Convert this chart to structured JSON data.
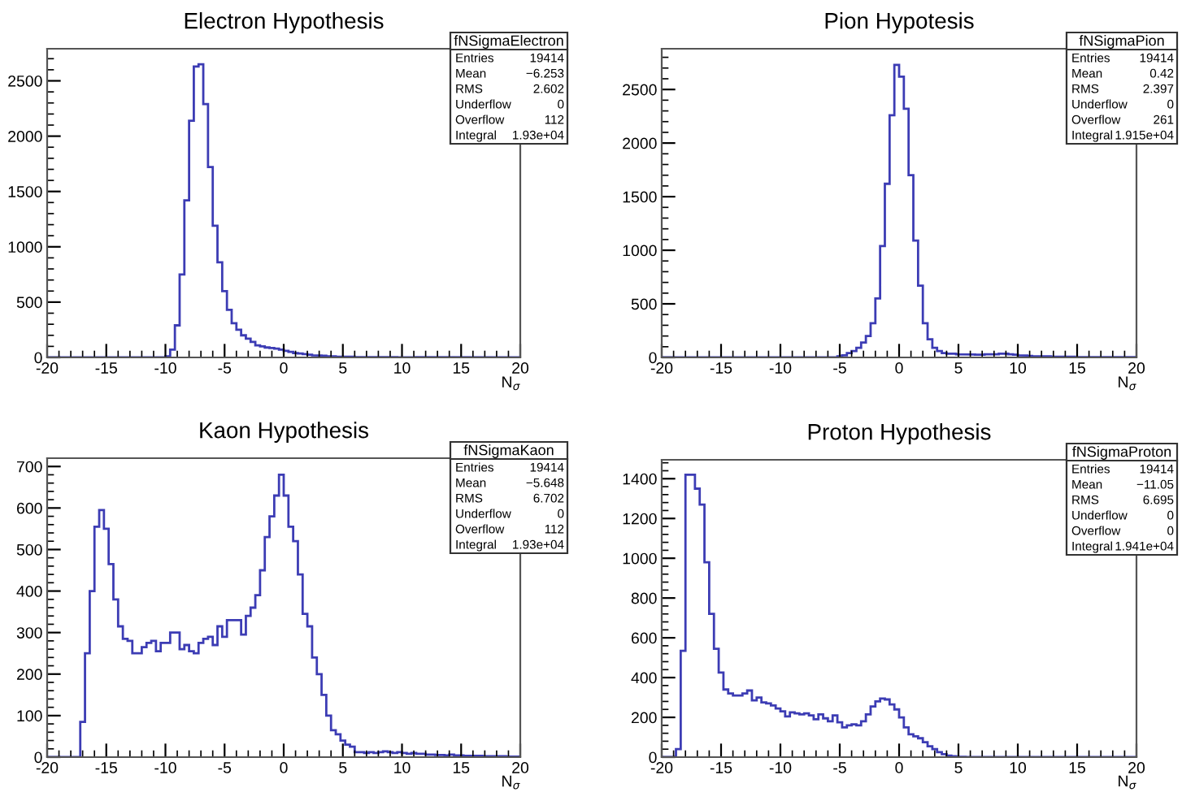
{
  "chart_data": [
    {
      "type": "histogram",
      "title": "Electron Hypothesis",
      "xlabel": "N$_{σ}$",
      "color": "#3c3cb4",
      "xlim": [
        -20,
        20
      ],
      "xticks": [
        -20,
        -15,
        -10,
        -5,
        0,
        5,
        10,
        15,
        20
      ],
      "ylim": [
        0,
        2790
      ],
      "yticks": [
        0,
        500,
        1000,
        1500,
        2000,
        2500
      ],
      "bins": [
        -20,
        -19.6,
        -19.2,
        -18.8,
        -18.4,
        -18,
        -17.6,
        -17.2,
        -16.8,
        -16.4,
        -16,
        -15.6,
        -15.2,
        -14.8,
        -14.4,
        -14,
        -13.6,
        -13.2,
        -12.8,
        -12.4,
        -12,
        -11.6,
        -11.2,
        -10.8,
        -10.4,
        -10,
        -9.6,
        -9.2,
        -8.8,
        -8.4,
        -8,
        -7.6,
        -7.2,
        -6.8,
        -6.4,
        -6,
        -5.6,
        -5.2,
        -4.8,
        -4.4,
        -4,
        -3.6,
        -3.2,
        -2.8,
        -2.4,
        -2,
        -1.6,
        -1.2,
        -0.8,
        -0.4,
        0,
        0.4,
        0.8,
        1.2,
        1.6,
        2,
        2.4,
        2.8,
        3.2,
        3.6,
        4,
        4.4,
        4.8,
        5.2,
        5.6,
        6,
        6.4,
        6.8,
        7.2,
        7.6,
        8,
        8.4,
        8.8,
        9.2,
        9.6,
        10,
        10.4,
        10.8,
        11.2,
        11.6,
        12,
        12.4,
        12.8,
        13.2,
        13.6,
        14,
        14.4,
        14.8,
        15.2,
        15.6,
        16,
        16.4,
        16.8,
        17.2,
        17.6,
        18,
        18.4,
        18.8,
        19.2,
        19.6,
        20
      ],
      "values": [
        0,
        0,
        0,
        0,
        0,
        0,
        0,
        0,
        0,
        0,
        0,
        0,
        0,
        0,
        0,
        0,
        0,
        0,
        0,
        0,
        0,
        0,
        0,
        0,
        0,
        10,
        70,
        290,
        750,
        1420,
        2140,
        2630,
        2650,
        2290,
        1720,
        1190,
        860,
        600,
        430,
        310,
        250,
        200,
        170,
        140,
        110,
        100,
        90,
        85,
        80,
        70,
        60,
        50,
        40,
        35,
        30,
        25,
        20,
        18,
        15,
        12,
        10,
        8,
        8,
        6,
        6,
        5,
        5,
        4,
        4,
        4,
        3,
        3,
        3,
        3,
        2,
        2,
        2,
        2,
        2,
        1,
        0,
        0,
        0,
        0,
        0,
        0,
        0,
        0,
        0,
        0,
        0,
        0,
        0,
        0,
        0,
        0,
        0,
        0,
        0,
        0
      ],
      "annotations": [
        "fNSigmaElectron",
        "Entries 19414",
        "Mean −6.253",
        "RMS 2.602",
        "Underflow 0",
        "Overflow 112",
        "Integral 1.93e+04"
      ]
    },
    {
      "type": "histogram",
      "title": "Pion Hypotesis",
      "xlabel": "N$_{σ}$",
      "color": "#3c3cb4",
      "xlim": [
        -20,
        20
      ],
      "xticks": [
        -20,
        -15,
        -10,
        -5,
        0,
        5,
        10,
        15,
        20
      ],
      "ylim": [
        0,
        2880
      ],
      "yticks": [
        0,
        500,
        1000,
        1500,
        2000,
        2500
      ],
      "bins": [
        -20,
        -19.6,
        -19.2,
        -18.8,
        -18.4,
        -18,
        -17.6,
        -17.2,
        -16.8,
        -16.4,
        -16,
        -15.6,
        -15.2,
        -14.8,
        -14.4,
        -14,
        -13.6,
        -13.2,
        -12.8,
        -12.4,
        -12,
        -11.6,
        -11.2,
        -10.8,
        -10.4,
        -10,
        -9.6,
        -9.2,
        -8.8,
        -8.4,
        -8,
        -7.6,
        -7.2,
        -6.8,
        -6.4,
        -6,
        -5.6,
        -5.2,
        -4.8,
        -4.4,
        -4,
        -3.6,
        -3.2,
        -2.8,
        -2.4,
        -2,
        -1.6,
        -1.2,
        -0.8,
        -0.4,
        0,
        0.4,
        0.8,
        1.2,
        1.6,
        2,
        2.4,
        2.8,
        3.2,
        3.6,
        4,
        4.4,
        4.8,
        5.2,
        5.6,
        6,
        6.4,
        6.8,
        7.2,
        7.6,
        8,
        8.4,
        8.8,
        9.2,
        9.6,
        10,
        10.4,
        10.8,
        11.2,
        11.6,
        12,
        12.4,
        12.8,
        13.2,
        13.6,
        14,
        14.4,
        14.8,
        15.2,
        15.6,
        16,
        16.4,
        16.8,
        17.2,
        17.6,
        18,
        18.4,
        18.8,
        19.2,
        19.6,
        20
      ],
      "values": [
        0,
        0,
        0,
        0,
        0,
        0,
        0,
        0,
        0,
        0,
        0,
        0,
        0,
        0,
        0,
        0,
        0,
        0,
        0,
        0,
        0,
        0,
        0,
        0,
        0,
        0,
        0,
        0,
        0,
        0,
        0,
        0,
        0,
        0,
        0,
        0,
        0,
        10,
        20,
        40,
        60,
        90,
        140,
        200,
        320,
        550,
        1040,
        1620,
        2260,
        2730,
        2620,
        2320,
        1700,
        1090,
        670,
        320,
        170,
        90,
        60,
        40,
        35,
        35,
        30,
        30,
        28,
        28,
        26,
        25,
        30,
        28,
        30,
        35,
        35,
        30,
        25,
        20,
        18,
        15,
        12,
        12,
        10,
        10,
        8,
        8,
        7,
        6,
        6,
        5,
        5,
        5,
        4,
        4,
        4,
        3,
        3,
        3,
        2,
        2,
        2,
        2
      ],
      "annotations": [
        "fNSigmaPion",
        "Entries 19414",
        "Mean 0.42",
        "RMS 2.397",
        "Underflow 0",
        "Overflow 261",
        "Integral 1.915e+04"
      ]
    },
    {
      "type": "histogram",
      "title": "Kaon Hypothesis",
      "xlabel": "N$_{σ}$",
      "color": "#3c3cb4",
      "xlim": [
        -20,
        20
      ],
      "xticks": [
        -20,
        -15,
        -10,
        -5,
        0,
        5,
        10,
        15,
        20
      ],
      "ylim": [
        0,
        720
      ],
      "yticks": [
        0,
        100,
        200,
        300,
        400,
        500,
        600,
        700
      ],
      "bins": [
        -20,
        -19.6,
        -19.2,
        -18.8,
        -18.4,
        -18,
        -17.6,
        -17.2,
        -16.8,
        -16.4,
        -16,
        -15.6,
        -15.2,
        -14.8,
        -14.4,
        -14,
        -13.6,
        -13.2,
        -12.8,
        -12.4,
        -12,
        -11.6,
        -11.2,
        -10.8,
        -10.4,
        -10,
        -9.6,
        -9.2,
        -8.8,
        -8.4,
        -8,
        -7.6,
        -7.2,
        -6.8,
        -6.4,
        -6,
        -5.6,
        -5.2,
        -4.8,
        -4.4,
        -4,
        -3.6,
        -3.2,
        -2.8,
        -2.4,
        -2,
        -1.6,
        -1.2,
        -0.8,
        -0.4,
        0,
        0.4,
        0.8,
        1.2,
        1.6,
        2,
        2.4,
        2.8,
        3.2,
        3.6,
        4,
        4.4,
        4.8,
        5.2,
        5.6,
        6,
        6.4,
        6.8,
        7.2,
        7.6,
        8,
        8.4,
        8.8,
        9.2,
        9.6,
        10,
        10.4,
        10.8,
        11.2,
        11.6,
        12,
        12.4,
        12.8,
        13.2,
        13.6,
        14,
        14.4,
        14.8,
        15.2,
        15.6,
        16,
        16.4,
        16.8,
        17.2,
        17.6,
        18,
        18.4,
        18.8,
        19.2,
        19.6,
        20
      ],
      "values": [
        0,
        0,
        0,
        0,
        0,
        0,
        0,
        85,
        250,
        400,
        555,
        595,
        550,
        465,
        380,
        315,
        285,
        280,
        250,
        250,
        265,
        275,
        280,
        255,
        275,
        275,
        300,
        300,
        260,
        270,
        255,
        250,
        275,
        285,
        290,
        270,
        315,
        290,
        330,
        330,
        330,
        295,
        340,
        360,
        390,
        450,
        530,
        580,
        630,
        680,
        630,
        555,
        520,
        440,
        345,
        315,
        240,
        200,
        150,
        100,
        65,
        55,
        40,
        30,
        25,
        12,
        12,
        10,
        12,
        10,
        12,
        14,
        12,
        10,
        12,
        10,
        8,
        10,
        8,
        8,
        6,
        6,
        5,
        5,
        4,
        6,
        4,
        4,
        3,
        3,
        3,
        3,
        2,
        2,
        2,
        2,
        2,
        1,
        1,
        1
      ],
      "annotations": [
        "fNSigmaKaon",
        "Entries 19414",
        "Mean −5.648",
        "RMS 6.702",
        "Underflow 0",
        "Overflow 112",
        "Integral 1.93e+04"
      ]
    },
    {
      "type": "histogram",
      "title": "Proton Hypothesis",
      "xlabel": "N$_{σ}$",
      "color": "#3c3cb4",
      "xlim": [
        -20,
        20
      ],
      "xticks": [
        -20,
        -15,
        -10,
        -5,
        0,
        5,
        10,
        15,
        20
      ],
      "ylim": [
        0,
        1495
      ],
      "yticks": [
        0,
        200,
        400,
        600,
        800,
        1000,
        1200,
        1400
      ],
      "bins": [
        -20,
        -19.6,
        -19.2,
        -18.8,
        -18.4,
        -18,
        -17.6,
        -17.2,
        -16.8,
        -16.4,
        -16,
        -15.6,
        -15.2,
        -14.8,
        -14.4,
        -14,
        -13.6,
        -13.2,
        -12.8,
        -12.4,
        -12,
        -11.6,
        -11.2,
        -10.8,
        -10.4,
        -10,
        -9.6,
        -9.2,
        -8.8,
        -8.4,
        -8,
        -7.6,
        -7.2,
        -6.8,
        -6.4,
        -6,
        -5.6,
        -5.2,
        -4.8,
        -4.4,
        -4,
        -3.6,
        -3.2,
        -2.8,
        -2.4,
        -2,
        -1.6,
        -1.2,
        -0.8,
        -0.4,
        0,
        0.4,
        0.8,
        1.2,
        1.6,
        2,
        2.4,
        2.8,
        3.2,
        3.6,
        4,
        4.4,
        4.8,
        5.2,
        5.6,
        6,
        6.4,
        6.8,
        7.2,
        7.6,
        8,
        8.4,
        8.8,
        9.2,
        9.6,
        10,
        10.4,
        10.8,
        11.2,
        11.6,
        12,
        12.4,
        12.8,
        13.2,
        13.6,
        14,
        14.4,
        14.8,
        15.2,
        15.6,
        16,
        16.4,
        16.8,
        17.2,
        17.6,
        18,
        18.4,
        18.8,
        19.2,
        19.6,
        20
      ],
      "values": [
        0,
        0,
        0,
        40,
        535,
        1420,
        1420,
        1350,
        1270,
        980,
        720,
        545,
        425,
        340,
        320,
        310,
        310,
        320,
        335,
        285,
        300,
        275,
        270,
        260,
        245,
        230,
        205,
        225,
        220,
        215,
        220,
        210,
        190,
        215,
        195,
        180,
        210,
        175,
        150,
        160,
        165,
        160,
        180,
        215,
        255,
        280,
        295,
        290,
        265,
        240,
        200,
        150,
        115,
        105,
        95,
        75,
        55,
        40,
        25,
        15,
        8,
        5,
        3,
        2,
        0,
        0,
        0,
        0,
        0,
        0,
        0,
        0,
        0,
        0,
        0,
        0,
        0,
        0,
        0,
        0,
        0,
        0,
        0,
        0,
        0,
        0,
        0,
        0,
        0,
        0,
        0,
        0,
        0,
        0,
        0,
        0,
        0,
        0,
        0,
        0
      ],
      "annotations": [
        "fNSigmaProton",
        "Entries 19414",
        "Mean −11.05",
        "RMS 6.695",
        "Underflow 0",
        "Overflow 0",
        "Integral 1.941e+04"
      ]
    }
  ]
}
